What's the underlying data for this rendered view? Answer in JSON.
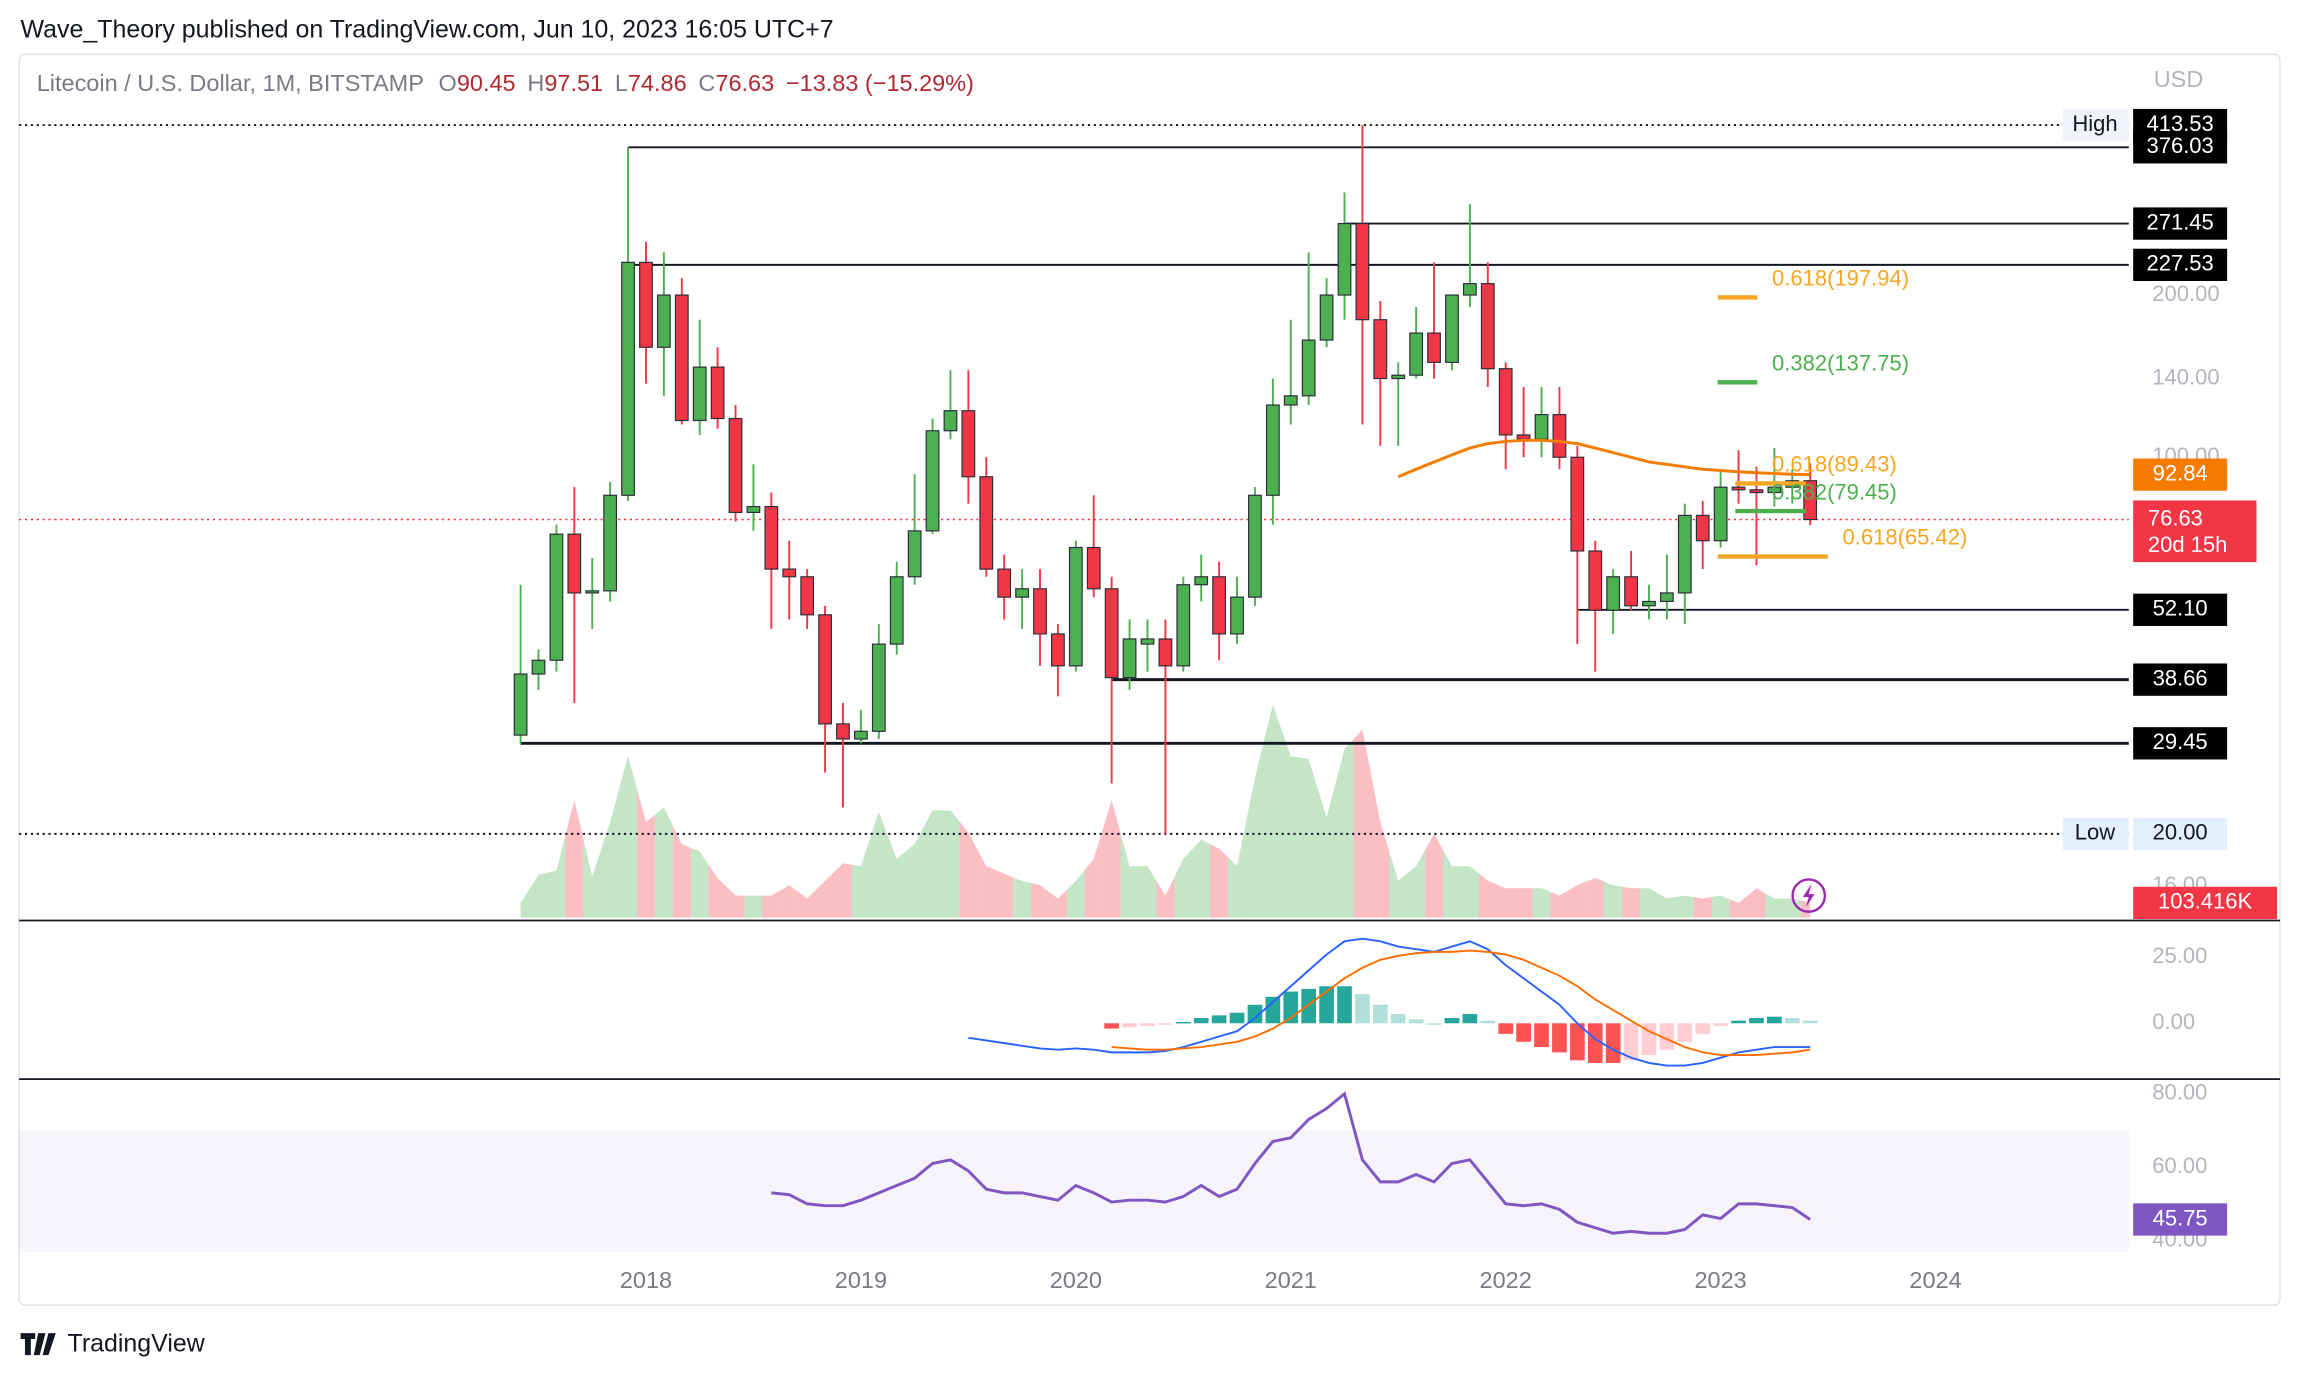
{
  "header": {
    "publisher": "Wave_Theory published on TradingView.com, Jun 10, 2023 16:05 UTC+7"
  },
  "footer": {
    "brand": "TradingView"
  },
  "chart_data": {
    "type": "candlestick",
    "title": "Litecoin / U.S. Dollar, 1M, BITSTAMP",
    "currency": "USD",
    "log_scale": true,
    "ohlc_letters": [
      "O",
      "H",
      "L",
      "C"
    ],
    "change": "−13.83 (−15.29%)",
    "countdown": "20d 15h",
    "up_color": "#4caf50",
    "down_color": "#f23645",
    "ylim": [
      13.81,
      556
    ],
    "yticks": [
      {
        "value": 200,
        "label": "200.00"
      },
      {
        "value": 140,
        "label": "140.00"
      },
      {
        "value": 100,
        "label": "100.00"
      },
      {
        "value": 16,
        "label": "16.00"
      }
    ],
    "x_labels": [
      "2018",
      "2019",
      "2020",
      "2021",
      "2022",
      "2023",
      "2024"
    ],
    "open": [
      30.5,
      39.6,
      42,
      72,
      56,
      56.5,
      85,
      230,
      160,
      200,
      117,
      147,
      118,
      79,
      81,
      62,
      60,
      51,
      32,
      30,
      31,
      45,
      60,
      73,
      112,
      122,
      92,
      62,
      55,
      57,
      47,
      41,
      68,
      57,
      39,
      45,
      46,
      41,
      58,
      60,
      47,
      55,
      85,
      125,
      130,
      165,
      200,
      271.45,
      180,
      140,
      142,
      170,
      150,
      200,
      210,
      146,
      110,
      108,
      120,
      100,
      67,
      52,
      60,
      53,
      54,
      56,
      78,
      70,
      88,
      87,
      86,
      88,
      90.45
    ],
    "high": [
      58,
      44,
      75,
      88,
      65,
      90,
      376.03,
      251,
      240,
      215,
      180,
      160,
      125,
      97,
      86,
      70,
      62,
      53,
      35,
      34,
      49,
      64,
      93,
      118,
      145,
      145,
      100,
      66,
      62,
      62,
      49,
      70,
      85,
      60,
      50,
      50,
      50,
      60,
      66,
      64,
      60,
      88,
      140,
      180,
      240,
      215,
      310,
      413.53,
      195,
      150,
      190,
      230,
      200,
      295,
      230,
      150,
      135,
      135,
      135,
      105,
      70,
      62,
      67,
      58,
      66,
      82,
      83,
      94,
      103,
      96,
      104,
      95,
      97.51
    ],
    "low": [
      29.4,
      37,
      40,
      35,
      48,
      54,
      83,
      137,
      130,
      115,
      110,
      113,
      76,
      73,
      48,
      50,
      48,
      26,
      22.4,
      29.45,
      30,
      43,
      58,
      72,
      108,
      82,
      60,
      50,
      48,
      41,
      36,
      40,
      55,
      24.8,
      37,
      40,
      20,
      40,
      54,
      42,
      45,
      53,
      75,
      115,
      125,
      160,
      180,
      115,
      105,
      105,
      140,
      140,
      145,
      190,
      135,
      95,
      100,
      100,
      95,
      45,
      40,
      47,
      52,
      50,
      50,
      49,
      62,
      68,
      82,
      63,
      81,
      82,
      74.86
    ],
    "close": [
      39.6,
      42,
      72,
      56,
      56.5,
      85,
      230,
      160,
      200,
      117,
      147,
      118,
      79,
      81,
      62,
      60,
      51,
      32,
      30,
      31,
      45,
      60,
      73,
      112,
      122,
      92,
      62,
      55,
      57,
      47,
      41,
      68,
      57,
      39,
      46,
      46,
      41,
      58,
      60,
      47,
      55,
      85,
      125,
      130,
      165,
      200,
      271.45,
      180,
      140,
      142,
      170,
      150,
      200,
      210,
      146,
      110,
      108,
      120,
      100,
      67,
      52,
      60,
      53,
      54,
      56,
      78,
      70,
      88,
      87,
      86,
      88,
      90.45,
      76.63
    ],
    "volume": {
      "values": [
        100,
        290,
        320,
        800,
        280,
        650,
        1100,
        650,
        750,
        500,
        450,
        270,
        150,
        150,
        150,
        220,
        130,
        250,
        370,
        350,
        720,
        400,
        500,
        730,
        730,
        580,
        350,
        300,
        250,
        220,
        130,
        250,
        400,
        800,
        350,
        350,
        150,
        400,
        530,
        470,
        350,
        950,
        1450,
        1100,
        1080,
        680,
        1150,
        1280,
        650,
        250,
        350,
        570,
        350,
        350,
        250,
        200,
        200,
        200,
        150,
        220,
        270,
        220,
        200,
        200,
        130,
        150,
        130,
        150,
        100,
        200,
        130,
        130,
        103.416
      ],
      "last_label": "103.416K"
    },
    "ma": {
      "color": "#f57c00",
      "values": [
        null,
        null,
        null,
        null,
        null,
        null,
        null,
        null,
        null,
        null,
        null,
        null,
        null,
        null,
        null,
        null,
        null,
        null,
        null,
        null,
        null,
        null,
        null,
        null,
        null,
        null,
        null,
        null,
        null,
        null,
        null,
        null,
        null,
        null,
        null,
        null,
        null,
        null,
        null,
        null,
        null,
        null,
        null,
        null,
        null,
        null,
        null,
        null,
        null,
        92,
        95,
        98,
        101,
        104,
        106,
        107,
        107.5,
        107.5,
        107,
        106,
        104,
        102,
        100,
        98,
        97,
        96,
        95,
        94.5,
        94,
        93.6,
        93.3,
        93,
        92.84
      ]
    },
    "levels": [
      {
        "value": 413.53,
        "label": "413.53",
        "tag": "High",
        "style": "dotted"
      },
      {
        "value": 376.03,
        "label": "376.03",
        "style": "solid"
      },
      {
        "value": 271.45,
        "label": "271.45",
        "style": "solid"
      },
      {
        "value": 227.53,
        "label": "227.53",
        "style": "solid"
      },
      {
        "value": 52.1,
        "label": "52.10",
        "style": "solid"
      },
      {
        "value": 38.66,
        "label": "38.66",
        "style": "solid"
      },
      {
        "value": 29.45,
        "label": "29.45",
        "style": "solid"
      },
      {
        "value": 20,
        "label": "20.00",
        "tag": "Low",
        "style": "dotted"
      }
    ],
    "fibs": [
      {
        "label": "0.618(197.94)",
        "value": 197.94,
        "color": "#f5a623"
      },
      {
        "label": "0.382(137.75)",
        "value": 137.75,
        "color": "#4caf50"
      },
      {
        "label": "0.618(89.43)",
        "value": 89.43,
        "color": "#f5a623"
      },
      {
        "label": "0.382(79.45)",
        "value": 79.45,
        "color": "#4caf50"
      },
      {
        "label": "0.618(65.42)",
        "value": 65.42,
        "color": "#f5a623"
      }
    ],
    "macd": {
      "ylim": [
        -21.1,
        38.3
      ],
      "yticks": [
        {
          "value": 25,
          "label": "25.00"
        },
        {
          "value": 0,
          "label": "0.00"
        }
      ],
      "macd": [
        null,
        null,
        null,
        null,
        null,
        null,
        null,
        null,
        null,
        null,
        null,
        null,
        null,
        null,
        null,
        null,
        null,
        null,
        null,
        null,
        null,
        null,
        null,
        null,
        null,
        -5.5,
        -6.5,
        -7.5,
        -8.5,
        -9.5,
        -10,
        -9.5,
        -10,
        -11,
        -11,
        -11,
        -10.5,
        -9,
        -7,
        -5,
        -3,
        2,
        8,
        14,
        20,
        26,
        31,
        32,
        31,
        29,
        28,
        27,
        29,
        31,
        28,
        22,
        17,
        12,
        7,
        0,
        -6,
        -10,
        -13,
        -15,
        -16,
        -16,
        -15,
        -13,
        -11,
        -10,
        -9,
        -9,
        -9
      ],
      "signal": [
        null,
        null,
        null,
        null,
        null,
        null,
        null,
        null,
        null,
        null,
        null,
        null,
        null,
        null,
        null,
        null,
        null,
        null,
        null,
        null,
        null,
        null,
        null,
        null,
        null,
        null,
        null,
        null,
        null,
        null,
        null,
        null,
        null,
        -9,
        -9.5,
        -10,
        -10,
        -9.5,
        -9,
        -8,
        -7,
        -5,
        -2,
        2,
        7,
        12,
        17,
        21,
        24,
        25.5,
        26.5,
        27,
        27,
        27.5,
        27,
        26,
        24,
        21,
        18,
        14,
        9,
        5,
        1,
        -3,
        -6,
        -9,
        -11,
        -12,
        -12,
        -12,
        -11.5,
        -11,
        -10
      ],
      "hist": [
        null,
        null,
        null,
        null,
        null,
        null,
        null,
        null,
        null,
        null,
        null,
        null,
        null,
        null,
        null,
        null,
        null,
        null,
        null,
        null,
        null,
        null,
        null,
        null,
        null,
        null,
        null,
        null,
        null,
        null,
        null,
        null,
        null,
        -2,
        -1.5,
        -1,
        -0.5,
        0.5,
        2,
        3,
        4,
        7,
        10,
        12,
        13,
        14,
        14,
        11,
        7,
        3.5,
        1.5,
        0,
        2,
        3.5,
        1,
        -4,
        -7,
        -9,
        -11,
        -14,
        -15,
        -15,
        -14,
        -12,
        -10,
        -7,
        -4,
        -1,
        1,
        2,
        2.5,
        2,
        1
      ]
    },
    "rsi": {
      "ylim": [
        36.8,
        83.6
      ],
      "band": [
        30,
        70
      ],
      "yticks": [
        {
          "value": 80,
          "label": "80.00"
        },
        {
          "value": 60,
          "label": "60.00"
        },
        {
          "value": 40,
          "label": "40.00"
        }
      ],
      "values": [
        null,
        null,
        null,
        null,
        null,
        null,
        null,
        null,
        null,
        null,
        null,
        null,
        null,
        null,
        53,
        52.5,
        50,
        49.5,
        49.5,
        51,
        53,
        55,
        57,
        61,
        62,
        59,
        54,
        53,
        53,
        52,
        51,
        55,
        53,
        50.5,
        51,
        51,
        50.5,
        52,
        55,
        52,
        54,
        61,
        67,
        68,
        73,
        76,
        80,
        62,
        56,
        56,
        58,
        56,
        61,
        62,
        56,
        50,
        49.5,
        50,
        48.5,
        45,
        43.5,
        42,
        42.5,
        42,
        42,
        43,
        47,
        46,
        50,
        50,
        49.5,
        49,
        45.75
      ]
    }
  }
}
